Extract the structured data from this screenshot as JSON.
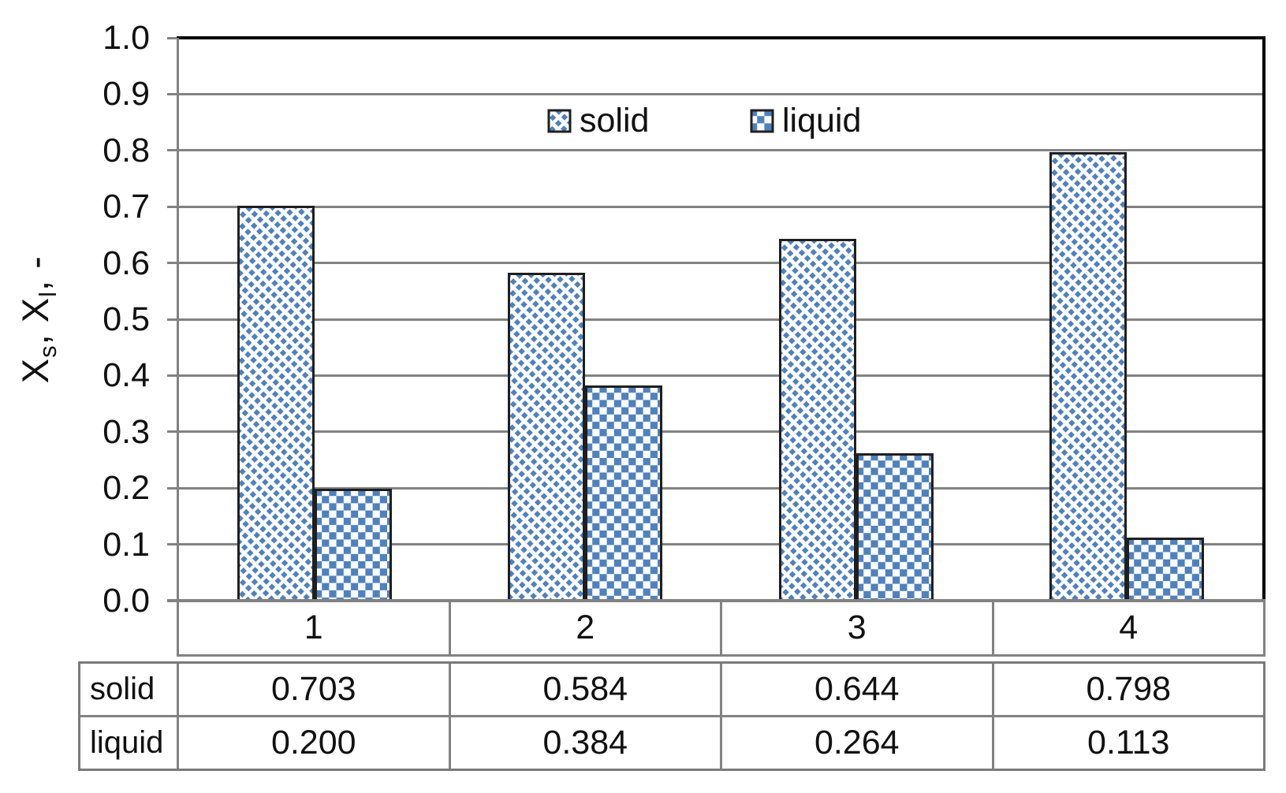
{
  "chart_data": {
    "type": "bar",
    "categories": [
      "1",
      "2",
      "3",
      "4"
    ],
    "series": [
      {
        "name": "solid",
        "pattern": "diagonal-dash",
        "values": [
          0.703,
          0.584,
          0.644,
          0.798
        ]
      },
      {
        "name": "liquid",
        "pattern": "checker",
        "values": [
          0.2,
          0.384,
          0.264,
          0.113
        ]
      }
    ],
    "ylabel": "Xs, Xl, -",
    "ylabel_parts": {
      "x1": "X",
      "sub1": "s",
      "sep1": ", ",
      "x2": "X",
      "sub2": "l",
      "sep2": ", -"
    },
    "xlabel": "",
    "ylim": [
      0,
      1
    ],
    "yticks": [
      "0.0",
      "0.1",
      "0.2",
      "0.3",
      "0.4",
      "0.5",
      "0.6",
      "0.7",
      "0.8",
      "0.9",
      "1.0"
    ],
    "grid": true,
    "legend_position": "top-center",
    "colors": {
      "accent": "#4F81BD",
      "grid": "#828282",
      "plot_border": "#000000",
      "bar_border": "#1f1f1f",
      "text": "#111111"
    }
  },
  "data_table": {
    "header": [
      "1",
      "2",
      "3",
      "4"
    ],
    "rows": [
      {
        "label": "solid",
        "values": [
          "0.703",
          "0.584",
          "0.644",
          "0.798"
        ]
      },
      {
        "label": "liquid",
        "values": [
          "0.200",
          "0.384",
          "0.264",
          "0.113"
        ]
      }
    ]
  },
  "legend": {
    "items": [
      {
        "label": "solid"
      },
      {
        "label": "liquid"
      }
    ]
  }
}
